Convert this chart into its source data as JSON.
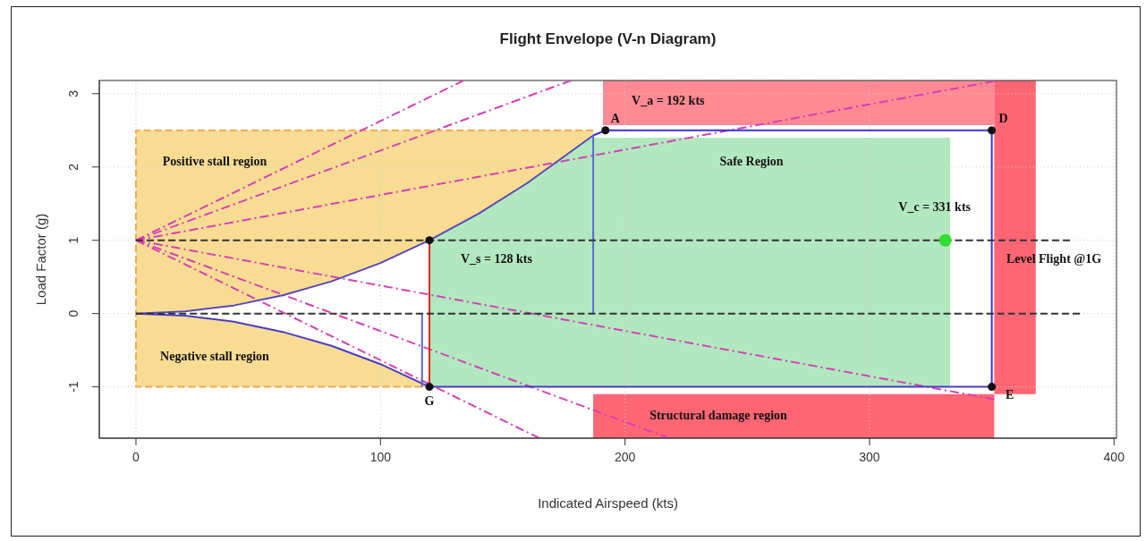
{
  "chart_data": {
    "type": "line",
    "title": "Flight Envelope (V-n Diagram)",
    "xlabel": "Indicated Airspeed (kts)",
    "ylabel": "Load Factor (g)",
    "xlim": [
      -15,
      401
    ],
    "ylim": [
      -1.7,
      3.18
    ],
    "xticks": [
      0,
      100,
      200,
      300,
      400
    ],
    "yticks": [
      -1,
      0,
      1,
      2,
      3
    ],
    "grid": true,
    "series": [
      {
        "color": "#f0a850",
        "line_style": "dashed",
        "x": [
          117,
          0,
          0,
          187
        ],
        "values": [
          -1,
          -1,
          2.5,
          2.5
        ]
      },
      {
        "color": "#d63fb5",
        "line_style": "dashdot",
        "x": [
          0,
          134
        ],
        "values": [
          1,
          3.18
        ]
      },
      {
        "color": "#d63fb5",
        "line_style": "dashdot",
        "x": [
          0,
          178
        ],
        "values": [
          1,
          3.18
        ]
      },
      {
        "color": "#d63fb5",
        "line_style": "dashdot",
        "x": [
          0,
          351
        ],
        "values": [
          1,
          3.17
        ]
      },
      {
        "color": "#d63fb5",
        "line_style": "dashdot",
        "x": [
          0,
          351
        ],
        "values": [
          1,
          -1.17
        ]
      },
      {
        "color": "#d63fb5",
        "line_style": "dashdot",
        "x": [
          0,
          218
        ],
        "values": [
          1,
          -1.7
        ]
      },
      {
        "color": "#d63fb5",
        "line_style": "dashdot",
        "x": [
          0,
          165
        ],
        "values": [
          1,
          -1.7
        ]
      },
      {
        "color": "#5848b8",
        "line_style": "solid",
        "x": [
          0,
          20,
          40,
          60,
          80,
          100,
          120,
          140,
          160,
          187
        ],
        "values": [
          0,
          0.03,
          0.11,
          0.25,
          0.44,
          0.69,
          1,
          1.36,
          1.78,
          2.43
        ]
      },
      {
        "color": "#4a3cc8",
        "line_style": "solid",
        "x": [
          0,
          20,
          40,
          60,
          80,
          100,
          120,
          350
        ],
        "values": [
          0,
          -0.03,
          -0.11,
          -0.25,
          -0.44,
          -0.69,
          -1,
          -1
        ]
      },
      {
        "color": "#3a30e0",
        "line_style": "solid",
        "x": [
          187,
          192,
          350,
          350
        ],
        "values": [
          2.43,
          2.5,
          2.5,
          -1
        ]
      },
      {
        "color": "#5a6ad0",
        "line_style": "solid",
        "x": [
          187,
          187
        ],
        "values": [
          2.43,
          0
        ]
      },
      {
        "color": "#5a6ad0",
        "line_style": "solid",
        "x": [
          117,
          117
        ],
        "values": [
          0,
          -1
        ]
      },
      {
        "color": "#e02a10",
        "line_style": "solid",
        "x": [
          120,
          120
        ],
        "values": [
          -1,
          1
        ]
      },
      {
        "color": "#333333",
        "line_style": "dashed",
        "x": [
          0,
          382
        ],
        "values": [
          1,
          1
        ]
      },
      {
        "color": "#333333",
        "line_style": "dashed",
        "x": [
          0,
          386
        ],
        "values": [
          0,
          0
        ]
      },
      {
        "type": "scatter",
        "color": "#111111",
        "marker": "circle",
        "x": [
          120,
          120,
          192,
          350,
          350
        ],
        "values": [
          1,
          -1,
          2.5,
          2.5,
          -1
        ]
      },
      {
        "type": "scatter",
        "color": "#33dd33",
        "marker": "circle",
        "x": [
          331
        ],
        "values": [
          1
        ]
      }
    ],
    "annotations": [
      "Positive stall region",
      "Negative stall region",
      "Safe Region",
      "Structural damage region",
      {
        "text": "V_s = 128 kts",
        "x": 120,
        "y": 1
      },
      {
        "text": "V_a = 192 kts",
        "x": 192,
        "y": 2.5
      },
      {
        "text": "V_c = 331 kts",
        "x": 331,
        "y": 1
      },
      {
        "text": "Level Flight @1G",
        "x": 382,
        "y": 1
      },
      {
        "text": "A",
        "x": 192,
        "y": 2.5
      },
      {
        "text": "D",
        "x": 350,
        "y": 2.5
      },
      {
        "text": "E",
        "x": 350,
        "y": -1
      },
      {
        "text": "G",
        "x": 120,
        "y": -1
      }
    ]
  }
}
